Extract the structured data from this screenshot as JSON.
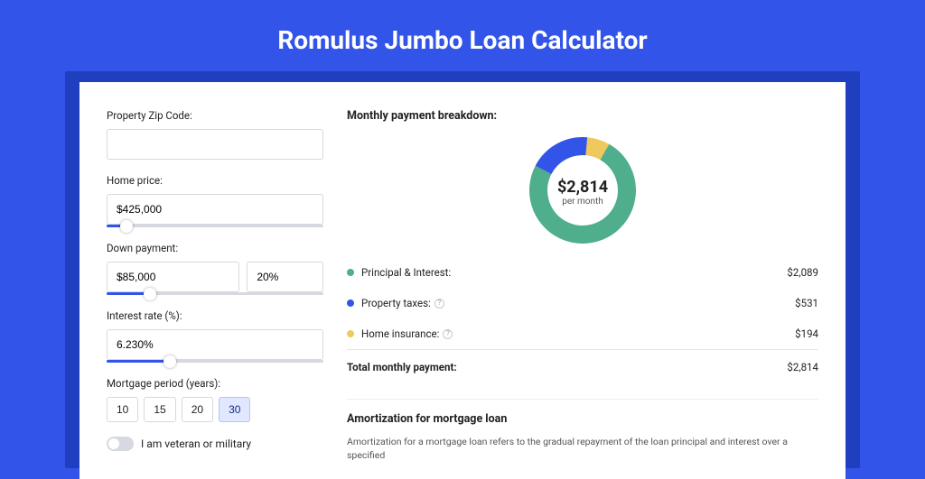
{
  "page": {
    "title": "Romulus Jumbo Loan Calculator",
    "bg_color": "#3254e8",
    "shadow_color": "#1f3fbf",
    "card_bg": "#ffffff"
  },
  "form": {
    "zip": {
      "label": "Property Zip Code:",
      "value": ""
    },
    "home_price": {
      "label": "Home price:",
      "value": "$425,000",
      "slider_pct": 9
    },
    "down_payment": {
      "label": "Down payment:",
      "amount": "$85,000",
      "percent": "20%",
      "slider_pct": 20
    },
    "interest_rate": {
      "label": "Interest rate (%):",
      "value": "6.230%",
      "slider_pct": 29
    },
    "mortgage_period": {
      "label": "Mortgage period (years):",
      "options": [
        "10",
        "15",
        "20",
        "30"
      ],
      "selected": "30"
    },
    "veteran": {
      "label": "I am veteran or military",
      "on": false
    }
  },
  "breakdown": {
    "title": "Monthly payment breakdown:",
    "donut": {
      "amount": "$2,814",
      "sub": "per month",
      "slices": [
        {
          "key": "principal_interest",
          "value": 2089,
          "color": "#4fae8c"
        },
        {
          "key": "property_taxes",
          "value": 531,
          "color": "#3254e8"
        },
        {
          "key": "home_insurance",
          "value": 194,
          "color": "#f0c95e"
        }
      ],
      "size": 118,
      "thickness": 20
    },
    "rows": [
      {
        "label": "Principal & Interest:",
        "value": "$2,089",
        "color": "#4fae8c",
        "info": false
      },
      {
        "label": "Property taxes:",
        "value": "$531",
        "color": "#3254e8",
        "info": true
      },
      {
        "label": "Home insurance:",
        "value": "$194",
        "color": "#f0c95e",
        "info": true
      }
    ],
    "total": {
      "label": "Total monthly payment:",
      "value": "$2,814"
    }
  },
  "amortization": {
    "title": "Amortization for mortgage loan",
    "text": "Amortization for a mortgage loan refers to the gradual repayment of the loan principal and interest over a specified"
  }
}
